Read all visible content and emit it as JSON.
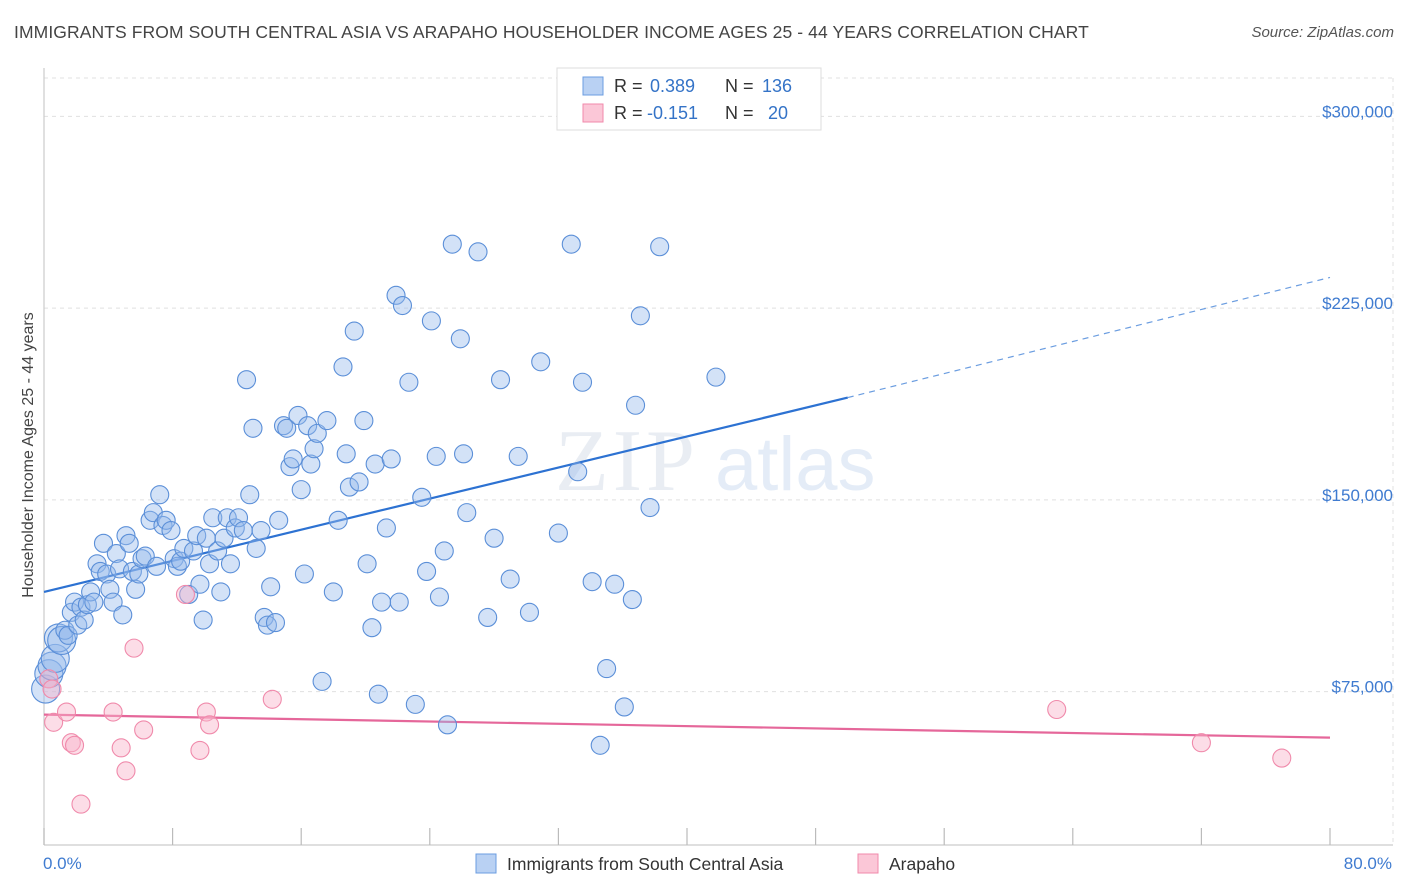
{
  "header": {
    "title": "IMMIGRANTS FROM SOUTH CENTRAL ASIA VS ARAPAHO HOUSEHOLDER INCOME AGES 25 - 44 YEARS CORRELATION CHART",
    "source": "Source: ZipAtlas.com"
  },
  "watermark": {
    "zip": "ZIP",
    "atlas": "atlas"
  },
  "colors": {
    "blue": "#6b9de0",
    "blue_line": "#2d72d2",
    "blue_text": "#3473c7",
    "pink": "#f08aab",
    "pink_line": "#e5679a",
    "grid": "#dddddd",
    "axis_text": "#3f7bd0"
  },
  "legend_box": {
    "rows": [
      {
        "r_label": "R =",
        "r_value": "0.389",
        "n_label": "N =",
        "n_value": "136"
      },
      {
        "r_label": "R =",
        "r_value": "-0.151",
        "n_label": "N =",
        "n_value": "20"
      }
    ]
  },
  "bottom_legend": {
    "series1": "Immigrants from South Central Asia",
    "series2": "Arapaho"
  },
  "chart_data": {
    "type": "scatter",
    "title": "IMMIGRANTS FROM SOUTH CENTRAL ASIA VS ARAPAHO HOUSEHOLDER INCOME AGES 25 - 44 YEARS CORRELATION CHART",
    "xlabel": "",
    "ylabel": "Householder Income Ages 25 - 44 years",
    "xlim": [
      0,
      80
    ],
    "ylim": [
      15000,
      315000
    ],
    "x_tick_labels": [
      "0.0%",
      "80.0%"
    ],
    "y_ticks": [
      75000,
      150000,
      225000,
      300000
    ],
    "y_tick_labels": [
      "$75,000",
      "$150,000",
      "$225,000",
      "$300,000"
    ],
    "grid": true,
    "legend_position": "bottom",
    "series": [
      {
        "name": "Immigrants from South Central Asia",
        "color": "#6b9de0",
        "r": 0.389,
        "n": 136,
        "trend": {
          "x": [
            0,
            50
          ],
          "y": [
            114000,
            190000
          ],
          "dashed_to": [
            80,
            237000
          ]
        },
        "points": [
          [
            0.1,
            76000
          ],
          [
            0.3,
            82000
          ],
          [
            0.5,
            85000
          ],
          [
            0.7,
            88000
          ],
          [
            0.9,
            96000
          ],
          [
            1.1,
            95000
          ],
          [
            1.3,
            99000
          ],
          [
            1.5,
            97000
          ],
          [
            1.7,
            106000
          ],
          [
            1.9,
            110000
          ],
          [
            2.1,
            101000
          ],
          [
            2.3,
            108000
          ],
          [
            2.5,
            103000
          ],
          [
            2.7,
            109000
          ],
          [
            2.9,
            114000
          ],
          [
            3.1,
            110000
          ],
          [
            3.3,
            125000
          ],
          [
            3.5,
            122000
          ],
          [
            3.7,
            133000
          ],
          [
            3.9,
            121000
          ],
          [
            4.1,
            115000
          ],
          [
            4.3,
            110000
          ],
          [
            4.5,
            129000
          ],
          [
            4.7,
            123000
          ],
          [
            4.9,
            105000
          ],
          [
            5.1,
            136000
          ],
          [
            5.3,
            133000
          ],
          [
            5.5,
            122000
          ],
          [
            5.7,
            115000
          ],
          [
            5.9,
            121000
          ],
          [
            6.1,
            127000
          ],
          [
            6.3,
            128000
          ],
          [
            6.6,
            142000
          ],
          [
            6.8,
            145000
          ],
          [
            7.0,
            124000
          ],
          [
            7.2,
            152000
          ],
          [
            7.4,
            140000
          ],
          [
            7.6,
            142000
          ],
          [
            7.9,
            138000
          ],
          [
            8.1,
            127000
          ],
          [
            8.3,
            124000
          ],
          [
            8.5,
            126000
          ],
          [
            8.7,
            131000
          ],
          [
            9.0,
            113000
          ],
          [
            9.3,
            130000
          ],
          [
            9.5,
            136000
          ],
          [
            9.7,
            117000
          ],
          [
            9.9,
            103000
          ],
          [
            10.1,
            135000
          ],
          [
            10.3,
            125000
          ],
          [
            10.5,
            143000
          ],
          [
            10.8,
            130000
          ],
          [
            11.0,
            114000
          ],
          [
            11.2,
            135000
          ],
          [
            11.4,
            143000
          ],
          [
            11.6,
            125000
          ],
          [
            11.9,
            139000
          ],
          [
            12.1,
            143000
          ],
          [
            12.4,
            138000
          ],
          [
            12.6,
            197000
          ],
          [
            12.8,
            152000
          ],
          [
            13.0,
            178000
          ],
          [
            13.2,
            131000
          ],
          [
            13.5,
            138000
          ],
          [
            13.7,
            104000
          ],
          [
            13.9,
            101000
          ],
          [
            14.1,
            116000
          ],
          [
            14.4,
            102000
          ],
          [
            14.6,
            142000
          ],
          [
            14.9,
            179000
          ],
          [
            15.1,
            178000
          ],
          [
            15.3,
            163000
          ],
          [
            15.5,
            166000
          ],
          [
            15.8,
            183000
          ],
          [
            16.0,
            154000
          ],
          [
            16.2,
            121000
          ],
          [
            16.4,
            179000
          ],
          [
            16.6,
            164000
          ],
          [
            16.8,
            170000
          ],
          [
            17.0,
            176000
          ],
          [
            17.3,
            79000
          ],
          [
            17.6,
            181000
          ],
          [
            18.0,
            114000
          ],
          [
            18.3,
            142000
          ],
          [
            18.6,
            202000
          ],
          [
            18.8,
            168000
          ],
          [
            19.0,
            155000
          ],
          [
            19.3,
            216000
          ],
          [
            19.6,
            157000
          ],
          [
            19.9,
            181000
          ],
          [
            20.1,
            125000
          ],
          [
            20.4,
            100000
          ],
          [
            20.6,
            164000
          ],
          [
            20.8,
            74000
          ],
          [
            21.0,
            110000
          ],
          [
            21.3,
            139000
          ],
          [
            21.6,
            166000
          ],
          [
            21.9,
            230000
          ],
          [
            22.1,
            110000
          ],
          [
            22.3,
            226000
          ],
          [
            22.7,
            196000
          ],
          [
            23.1,
            70000
          ],
          [
            23.5,
            151000
          ],
          [
            23.8,
            122000
          ],
          [
            24.1,
            220000
          ],
          [
            24.4,
            167000
          ],
          [
            24.6,
            112000
          ],
          [
            24.9,
            130000
          ],
          [
            25.1,
            62000
          ],
          [
            25.4,
            250000
          ],
          [
            25.9,
            213000
          ],
          [
            26.1,
            168000
          ],
          [
            26.3,
            145000
          ],
          [
            27.0,
            247000
          ],
          [
            27.6,
            104000
          ],
          [
            28.0,
            135000
          ],
          [
            28.4,
            197000
          ],
          [
            29.0,
            119000
          ],
          [
            29.5,
            167000
          ],
          [
            30.2,
            106000
          ],
          [
            30.9,
            204000
          ],
          [
            32.0,
            137000
          ],
          [
            32.8,
            250000
          ],
          [
            33.2,
            161000
          ],
          [
            33.5,
            196000
          ],
          [
            34.1,
            118000
          ],
          [
            35.0,
            84000
          ],
          [
            35.5,
            117000
          ],
          [
            36.1,
            69000
          ],
          [
            36.6,
            111000
          ],
          [
            36.8,
            187000
          ],
          [
            37.7,
            147000
          ],
          [
            38.3,
            249000
          ],
          [
            41.8,
            198000
          ],
          [
            34.6,
            54000
          ],
          [
            37.1,
            222000
          ]
        ]
      },
      {
        "name": "Arapaho",
        "color": "#f08aab",
        "r": -0.151,
        "n": 20,
        "trend": {
          "x": [
            0,
            80
          ],
          "y": [
            66000,
            57000
          ]
        },
        "points": [
          [
            0.3,
            80000
          ],
          [
            0.5,
            76000
          ],
          [
            0.6,
            63000
          ],
          [
            1.4,
            67000
          ],
          [
            1.7,
            55000
          ],
          [
            1.9,
            54000
          ],
          [
            2.3,
            31000
          ],
          [
            4.3,
            67000
          ],
          [
            4.8,
            53000
          ],
          [
            5.1,
            44000
          ],
          [
            5.6,
            92000
          ],
          [
            6.2,
            60000
          ],
          [
            8.8,
            113000
          ],
          [
            9.7,
            52000
          ],
          [
            10.1,
            67000
          ],
          [
            10.3,
            62000
          ],
          [
            14.2,
            72000
          ],
          [
            63.0,
            68000
          ],
          [
            72.0,
            55000
          ],
          [
            77.0,
            49000
          ]
        ]
      }
    ]
  }
}
